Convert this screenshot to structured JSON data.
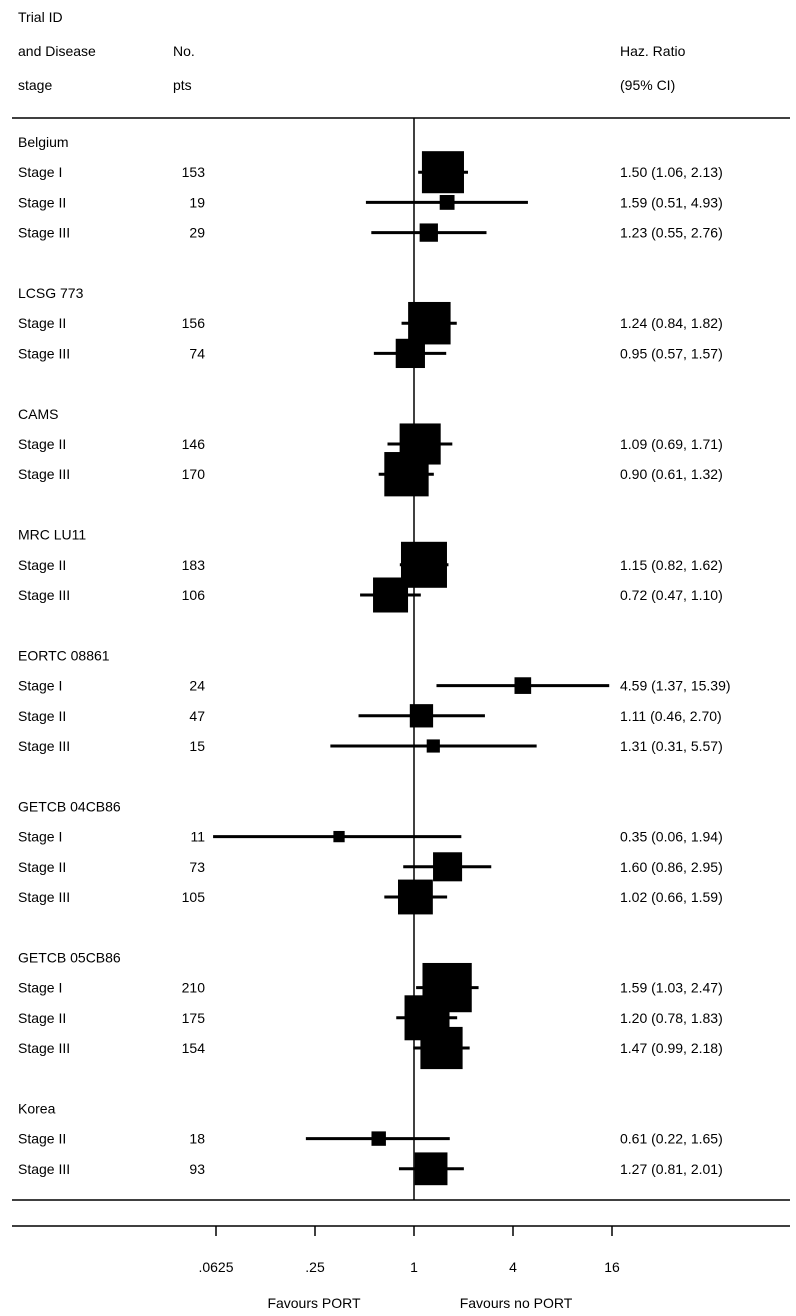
{
  "chart_data": {
    "type": "forest",
    "header": {
      "col_trial": [
        "Trial ID",
        "and Disease",
        "stage"
      ],
      "col_pts": [
        "No.",
        "pts"
      ],
      "col_hr": [
        "Haz. Ratio",
        "(95% CI)"
      ]
    },
    "x_scale": "log2",
    "xlim": [
      0.0125,
      30
    ],
    "x_ticks": [
      {
        "value": 0.0625,
        "label": ".0625"
      },
      {
        "value": 0.25,
        "label": ".25"
      },
      {
        "value": 1,
        "label": "1"
      },
      {
        "value": 4,
        "label": "4"
      },
      {
        "value": 16,
        "label": "16"
      }
    ],
    "favours_left": "Favours PORT",
    "favours_right": "Favours no PORT",
    "groups": [
      {
        "name": "Belgium",
        "rows": [
          {
            "stage": "Stage I",
            "pts": "153",
            "hr": 1.5,
            "lo": 1.06,
            "hi": 2.13,
            "text": "1.50 (1.06, 2.13)"
          },
          {
            "stage": "Stage II",
            "pts": "19",
            "hr": 1.59,
            "lo": 0.51,
            "hi": 4.93,
            "text": "1.59 (0.51, 4.93)"
          },
          {
            "stage": "Stage III",
            "pts": "29",
            "hr": 1.23,
            "lo": 0.55,
            "hi": 2.76,
            "text": "1.23 (0.55, 2.76)"
          }
        ]
      },
      {
        "name": "LCSG 773",
        "rows": [
          {
            "stage": "Stage II",
            "pts": "156",
            "hr": 1.24,
            "lo": 0.84,
            "hi": 1.82,
            "text": "1.24 (0.84, 1.82)"
          },
          {
            "stage": "Stage III",
            "pts": "74",
            "hr": 0.95,
            "lo": 0.57,
            "hi": 1.57,
            "text": "0.95 (0.57, 1.57)"
          }
        ]
      },
      {
        "name": "CAMS",
        "rows": [
          {
            "stage": "Stage II",
            "pts": "146",
            "hr": 1.09,
            "lo": 0.69,
            "hi": 1.71,
            "text": "1.09 (0.69, 1.71)"
          },
          {
            "stage": "Stage III",
            "pts": "170",
            "hr": 0.9,
            "lo": 0.61,
            "hi": 1.32,
            "text": "0.90 (0.61, 1.32)"
          }
        ]
      },
      {
        "name": "MRC LU11",
        "rows": [
          {
            "stage": "Stage II",
            "pts": "183",
            "hr": 1.15,
            "lo": 0.82,
            "hi": 1.62,
            "text": "1.15 (0.82, 1.62)"
          },
          {
            "stage": "Stage III",
            "pts": "106",
            "hr": 0.72,
            "lo": 0.47,
            "hi": 1.1,
            "text": "0.72 (0.47, 1.10)"
          }
        ]
      },
      {
        "name": "EORTC 08861",
        "rows": [
          {
            "stage": "Stage I",
            "pts": "24",
            "hr": 4.59,
            "lo": 1.37,
            "hi": 15.39,
            "text": "4.59 (1.37, 15.39)"
          },
          {
            "stage": "Stage II",
            "pts": "47",
            "hr": 1.11,
            "lo": 0.46,
            "hi": 2.7,
            "text": "1.11 (0.46, 2.70)"
          },
          {
            "stage": "Stage III",
            "pts": "15",
            "hr": 1.31,
            "lo": 0.31,
            "hi": 5.57,
            "text": "1.31 (0.31, 5.57)"
          }
        ]
      },
      {
        "name": "GETCB 04CB86",
        "rows": [
          {
            "stage": "Stage I",
            "pts": "11",
            "hr": 0.35,
            "lo": 0.06,
            "hi": 1.94,
            "text": "0.35 (0.06, 1.94)"
          },
          {
            "stage": "Stage II",
            "pts": "73",
            "hr": 1.6,
            "lo": 0.86,
            "hi": 2.95,
            "text": "1.60 (0.86, 2.95)"
          },
          {
            "stage": "Stage III",
            "pts": "105",
            "hr": 1.02,
            "lo": 0.66,
            "hi": 1.59,
            "text": "1.02 (0.66, 1.59)"
          }
        ]
      },
      {
        "name": "GETCB 05CB86",
        "rows": [
          {
            "stage": "Stage I",
            "pts": "210",
            "hr": 1.59,
            "lo": 1.03,
            "hi": 2.47,
            "text": "1.59 (1.03, 2.47)"
          },
          {
            "stage": "Stage II",
            "pts": "175",
            "hr": 1.2,
            "lo": 0.78,
            "hi": 1.83,
            "text": "1.20 (0.78, 1.83)"
          },
          {
            "stage": "Stage III",
            "pts": "154",
            "hr": 1.47,
            "lo": 0.99,
            "hi": 2.18,
            "text": "1.47 (0.99, 2.18)"
          }
        ]
      },
      {
        "name": "Korea",
        "rows": [
          {
            "stage": "Stage II",
            "pts": "18",
            "hr": 0.61,
            "lo": 0.22,
            "hi": 1.65,
            "text": "0.61 (0.22, 1.65)"
          },
          {
            "stage": "Stage III",
            "pts": "93",
            "hr": 1.27,
            "lo": 0.81,
            "hi": 2.01,
            "text": "1.27 (0.81, 2.01)"
          }
        ]
      }
    ]
  }
}
